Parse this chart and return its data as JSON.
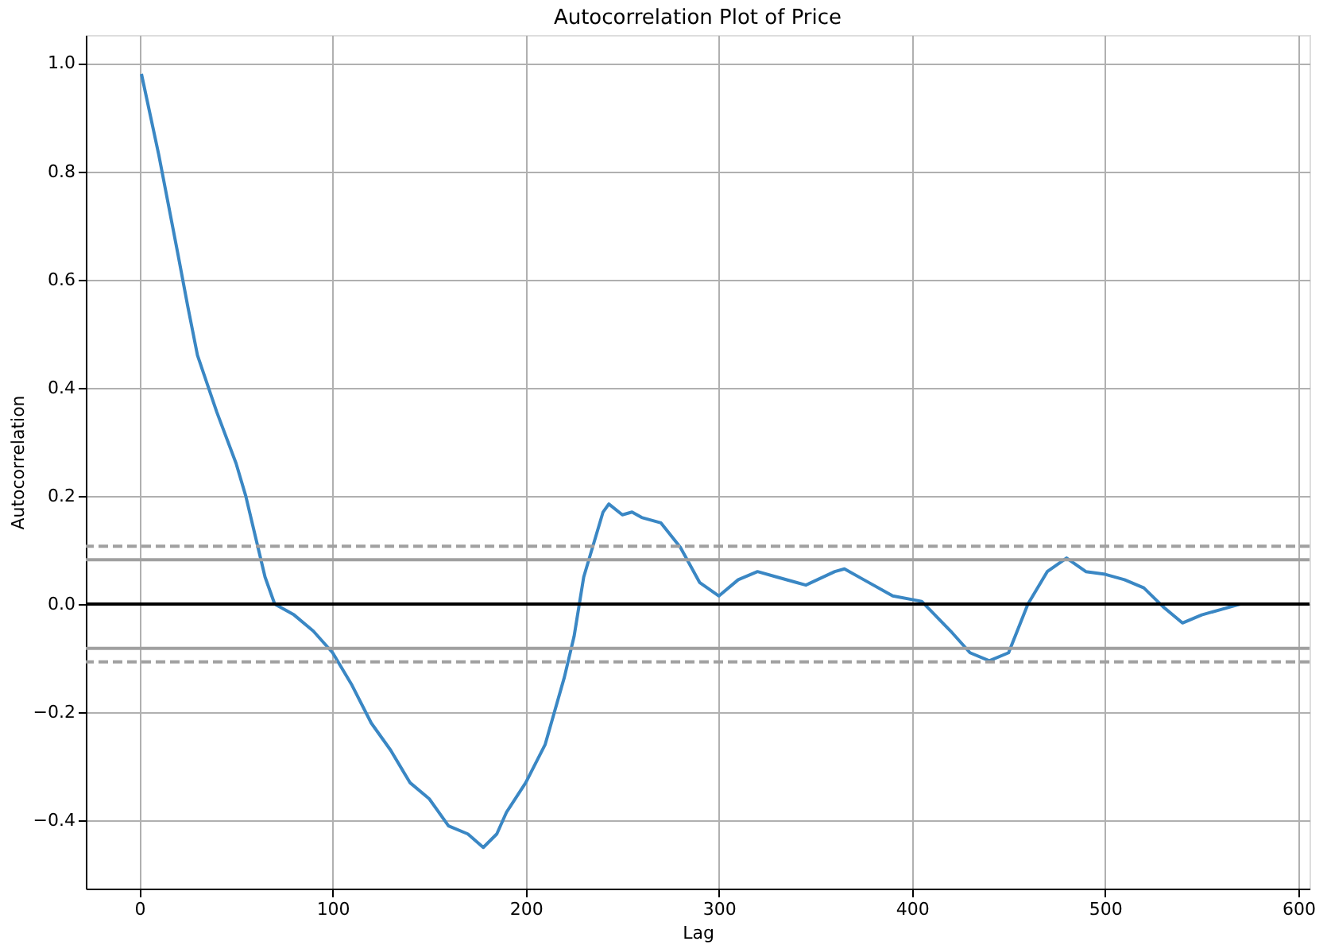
{
  "chart_data": {
    "type": "line",
    "title": "Autocorrelation Plot of Price",
    "xlabel": "Lag",
    "ylabel": "Autocorrelation",
    "xlim": [
      -27.8,
      605.8
    ],
    "ylim": [
      -0.526,
      1.052
    ],
    "xticks": [
      0,
      100,
      200,
      300,
      400,
      500,
      600
    ],
    "yticks": [
      -0.4,
      -0.2,
      {
        "value": 0,
        "label": "0.0"
      },
      0.2,
      0.4,
      0.6,
      0.8,
      {
        "value": 1,
        "label": "1.0"
      }
    ],
    "grid": true,
    "line_style": "solid",
    "marker": "none",
    "ref_lines": [
      {
        "axis": "y",
        "value": 0.107,
        "color": "#a0a0a0",
        "line_style": "dashed"
      },
      {
        "axis": "y",
        "value": 0.082,
        "color": "#a0a0a0",
        "line_style": "solid"
      },
      {
        "axis": "y",
        "value": 0,
        "color": "#000000",
        "line_style": "solid"
      },
      {
        "axis": "y",
        "value": -0.082,
        "color": "#a0a0a0",
        "line_style": "solid"
      },
      {
        "axis": "y",
        "value": -0.107,
        "color": "#a0a0a0",
        "line_style": "dashed"
      }
    ],
    "series": [
      {
        "color": "#3a87c4",
        "x": [
          1,
          10,
          20,
          25,
          30,
          40,
          50,
          55,
          60,
          65,
          70,
          80,
          90,
          100,
          110,
          120,
          130,
          140,
          150,
          160,
          170,
          178,
          185,
          190,
          200,
          210,
          220,
          225,
          230,
          240,
          243,
          250,
          255,
          260,
          270,
          280,
          290,
          300,
          310,
          320,
          330,
          340,
          345,
          360,
          365,
          375,
          390,
          405,
          420,
          430,
          440,
          450,
          460,
          470,
          480,
          490,
          500,
          510,
          520,
          530,
          540,
          550,
          560,
          570,
          577
        ],
        "values": [
          0.98,
          0.83,
          0.645,
          0.55,
          0.46,
          0.355,
          0.26,
          0.2,
          0.125,
          0.05,
          0.0,
          -0.02,
          -0.05,
          -0.09,
          -0.15,
          -0.22,
          -0.27,
          -0.33,
          -0.36,
          -0.41,
          -0.425,
          -0.45,
          -0.425,
          -0.385,
          -0.33,
          -0.26,
          -0.135,
          -0.06,
          0.05,
          0.17,
          0.185,
          0.165,
          0.17,
          0.16,
          0.15,
          0.105,
          0.04,
          0.015,
          0.045,
          0.06,
          0.05,
          0.04,
          0.035,
          0.06,
          0.065,
          0.045,
          0.015,
          0.005,
          -0.05,
          -0.09,
          -0.105,
          -0.09,
          0.0,
          0.06,
          0.085,
          0.06,
          0.055,
          0.045,
          0.03,
          -0.005,
          -0.035,
          -0.02,
          -0.01,
          0.0,
          0.0
        ]
      }
    ]
  }
}
